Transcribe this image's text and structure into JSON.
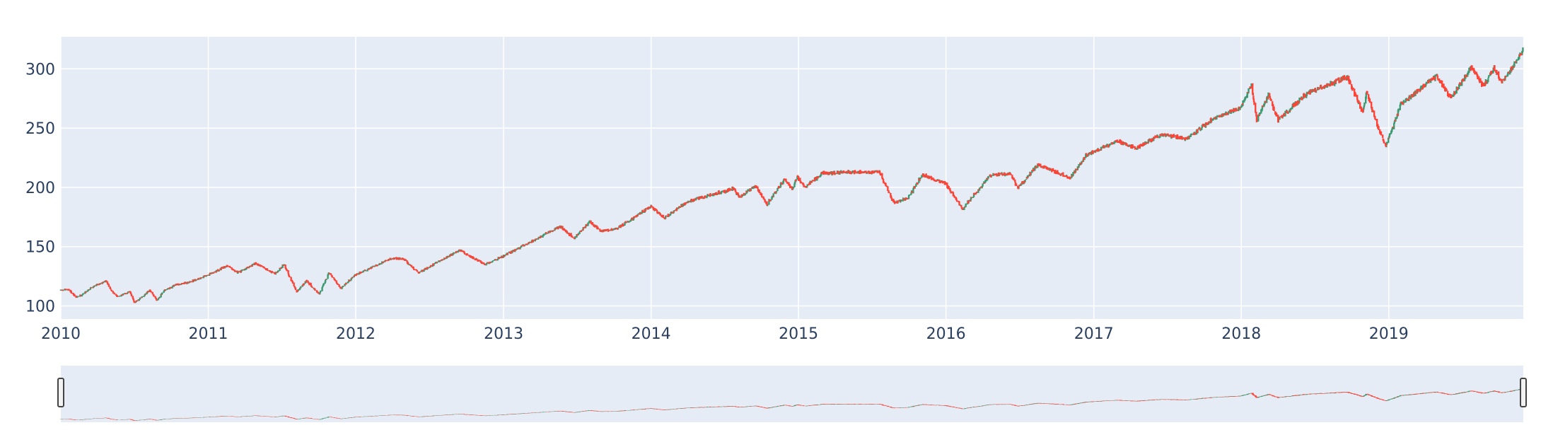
{
  "chart_data": {
    "type": "candlestick",
    "title": "",
    "xlabel": "",
    "ylabel": "",
    "x_ticks": [
      "2010",
      "2011",
      "2012",
      "2013",
      "2014",
      "2015",
      "2016",
      "2017",
      "2018",
      "2019"
    ],
    "y_ticks": [
      100,
      150,
      200,
      250,
      300
    ],
    "xlim": [
      "2010-01-01",
      "2019-11-30"
    ],
    "ylim": [
      89,
      327
    ],
    "grid": true,
    "legend": false,
    "rangeslider": true,
    "colors": {
      "increasing": "#3d9970",
      "decreasing": "#ff4136",
      "plot_bg": "#e5ecf6",
      "grid": "#ffffff",
      "tick_text": "#2a3f5f",
      "handle": "#444444"
    },
    "series": [
      {
        "close_anchors": [
          [
            "2010-01-01",
            113
          ],
          [
            "2010-01-20",
            114
          ],
          [
            "2010-02-08",
            107
          ],
          [
            "2010-02-25",
            110
          ],
          [
            "2010-03-15",
            115
          ],
          [
            "2010-04-01",
            118
          ],
          [
            "2010-04-23",
            121
          ],
          [
            "2010-05-06",
            113
          ],
          [
            "2010-05-20",
            108
          ],
          [
            "2010-06-07",
            110
          ],
          [
            "2010-06-21",
            112
          ],
          [
            "2010-07-02",
            103
          ],
          [
            "2010-07-20",
            107
          ],
          [
            "2010-08-09",
            113
          ],
          [
            "2010-08-27",
            105
          ],
          [
            "2010-09-15",
            113
          ],
          [
            "2010-10-15",
            118
          ],
          [
            "2010-11-15",
            120
          ],
          [
            "2010-12-31",
            126
          ],
          [
            "2011-02-18",
            134
          ],
          [
            "2011-03-16",
            128
          ],
          [
            "2011-04-29",
            136
          ],
          [
            "2011-06-15",
            127
          ],
          [
            "2011-07-07",
            135
          ],
          [
            "2011-08-08",
            112
          ],
          [
            "2011-09-01",
            121
          ],
          [
            "2011-10-03",
            110
          ],
          [
            "2011-10-27",
            128
          ],
          [
            "2011-11-25",
            115
          ],
          [
            "2011-12-30",
            126
          ],
          [
            "2012-03-30",
            140
          ],
          [
            "2012-04-27",
            140
          ],
          [
            "2012-06-04",
            128
          ],
          [
            "2012-09-14",
            147
          ],
          [
            "2012-11-15",
            135
          ],
          [
            "2012-12-31",
            142
          ],
          [
            "2013-05-21",
            167
          ],
          [
            "2013-06-24",
            157
          ],
          [
            "2013-08-02",
            171
          ],
          [
            "2013-08-30",
            163
          ],
          [
            "2013-10-08",
            165
          ],
          [
            "2013-12-31",
            184
          ],
          [
            "2014-02-03",
            174
          ],
          [
            "2014-04-01",
            188
          ],
          [
            "2014-07-24",
            199
          ],
          [
            "2014-08-07",
            192
          ],
          [
            "2014-09-18",
            201
          ],
          [
            "2014-10-15",
            186
          ],
          [
            "2014-11-28",
            207
          ],
          [
            "2014-12-16",
            198
          ],
          [
            "2014-12-29",
            209
          ],
          [
            "2015-01-15",
            200
          ],
          [
            "2015-03-02",
            212
          ],
          [
            "2015-05-20",
            213
          ],
          [
            "2015-07-20",
            213
          ],
          [
            "2015-08-24",
            187
          ],
          [
            "2015-09-30",
            191
          ],
          [
            "2015-11-03",
            211
          ],
          [
            "2015-12-31",
            203
          ],
          [
            "2016-02-11",
            182
          ],
          [
            "2016-04-20",
            210
          ],
          [
            "2016-06-08",
            212
          ],
          [
            "2016-06-27",
            199
          ],
          [
            "2016-08-15",
            219
          ],
          [
            "2016-11-04",
            208
          ],
          [
            "2016-12-13",
            227
          ],
          [
            "2017-03-01",
            239
          ],
          [
            "2017-04-13",
            233
          ],
          [
            "2017-06-19",
            245
          ],
          [
            "2017-08-18",
            241
          ],
          [
            "2017-10-20",
            257
          ],
          [
            "2017-12-29",
            267
          ],
          [
            "2018-01-26",
            286
          ],
          [
            "2018-02-08",
            257
          ],
          [
            "2018-03-09",
            278
          ],
          [
            "2018-04-02",
            257
          ],
          [
            "2018-06-12",
            279
          ],
          [
            "2018-08-29",
            290
          ],
          [
            "2018-09-20",
            293
          ],
          [
            "2018-10-29",
            263
          ],
          [
            "2018-11-07",
            281
          ],
          [
            "2018-11-23",
            263
          ],
          [
            "2018-12-24",
            234
          ],
          [
            "2019-01-31",
            270
          ],
          [
            "2019-04-30",
            294
          ],
          [
            "2019-06-03",
            275
          ],
          [
            "2019-07-26",
            302
          ],
          [
            "2019-08-23",
            285
          ],
          [
            "2019-09-19",
            301
          ],
          [
            "2019-10-08",
            288
          ],
          [
            "2019-11-29",
            315
          ]
        ]
      }
    ]
  }
}
